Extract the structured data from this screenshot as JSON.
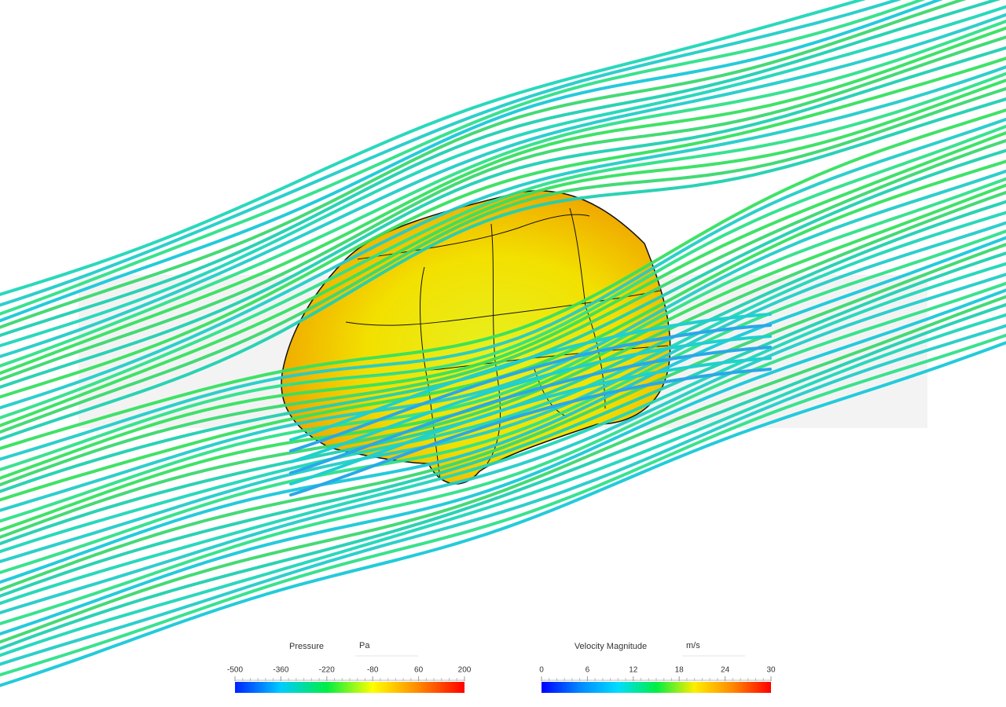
{
  "legends": [
    {
      "title": "Pressure",
      "unit": "Pa",
      "range": [
        -500,
        200
      ],
      "ticks": [
        -500,
        -360,
        -220,
        -80,
        60,
        200
      ],
      "colors": [
        "#0022ff",
        "#00ccff",
        "#00ee44",
        "#ffff00",
        "#ff8800",
        "#ff0000"
      ]
    },
    {
      "title": "Velocity Magnitude",
      "unit": "m/s",
      "range": [
        0,
        30
      ],
      "ticks": [
        0,
        6,
        12,
        18,
        24,
        30
      ],
      "colors": [
        "#0000ff",
        "#0088ff",
        "#00ddff",
        "#00ee44",
        "#ffee00",
        "#ff8800",
        "#ff0000"
      ]
    }
  ]
}
